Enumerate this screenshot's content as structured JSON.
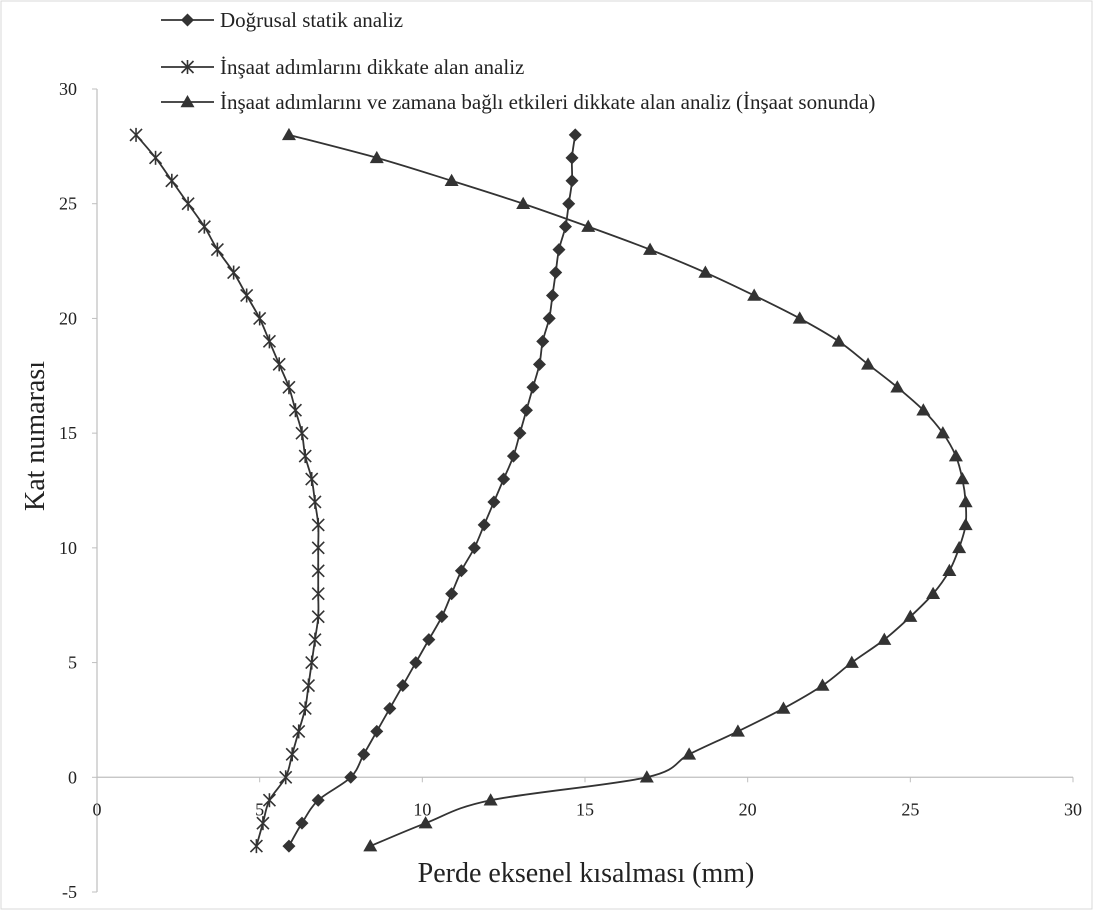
{
  "chart_data": {
    "type": "line",
    "xlabel": "Perde eksenel kısalması (mm)",
    "ylabel": "Kat numarası",
    "xlim": [
      0,
      30
    ],
    "ylim": [
      -5,
      30
    ],
    "x_ticks": [
      0,
      5,
      10,
      15,
      20,
      25,
      30
    ],
    "y_ticks": [
      -5,
      0,
      5,
      10,
      15,
      20,
      25,
      30
    ],
    "grid": false,
    "legend_position": "top",
    "line_color": "#333333",
    "series": [
      {
        "name": "Doğrusal statik analiz",
        "marker": "diamond",
        "points": [
          [
            5.9,
            -3
          ],
          [
            6.3,
            -2
          ],
          [
            6.8,
            -1
          ],
          [
            7.8,
            0
          ],
          [
            8.2,
            1
          ],
          [
            8.6,
            2
          ],
          [
            9.0,
            3
          ],
          [
            9.4,
            4
          ],
          [
            9.8,
            5
          ],
          [
            10.2,
            6
          ],
          [
            10.6,
            7
          ],
          [
            10.9,
            8
          ],
          [
            11.2,
            9
          ],
          [
            11.6,
            10
          ],
          [
            11.9,
            11
          ],
          [
            12.2,
            12
          ],
          [
            12.5,
            13
          ],
          [
            12.8,
            14
          ],
          [
            13.0,
            15
          ],
          [
            13.2,
            16
          ],
          [
            13.4,
            17
          ],
          [
            13.6,
            18
          ],
          [
            13.7,
            19
          ],
          [
            13.9,
            20
          ],
          [
            14.0,
            21
          ],
          [
            14.1,
            22
          ],
          [
            14.2,
            23
          ],
          [
            14.4,
            24
          ],
          [
            14.5,
            25
          ],
          [
            14.6,
            26
          ],
          [
            14.6,
            27
          ],
          [
            14.7,
            28
          ]
        ]
      },
      {
        "name": "İnşaat adımlarını dikkate alan analiz",
        "marker": "star",
        "points": [
          [
            4.9,
            -3
          ],
          [
            5.1,
            -2
          ],
          [
            5.3,
            -1
          ],
          [
            5.8,
            0
          ],
          [
            6.0,
            1
          ],
          [
            6.2,
            2
          ],
          [
            6.4,
            3
          ],
          [
            6.5,
            4
          ],
          [
            6.6,
            5
          ],
          [
            6.7,
            6
          ],
          [
            6.8,
            7
          ],
          [
            6.8,
            8
          ],
          [
            6.8,
            9
          ],
          [
            6.8,
            10
          ],
          [
            6.8,
            11
          ],
          [
            6.7,
            12
          ],
          [
            6.6,
            13
          ],
          [
            6.4,
            14
          ],
          [
            6.3,
            15
          ],
          [
            6.1,
            16
          ],
          [
            5.9,
            17
          ],
          [
            5.6,
            18
          ],
          [
            5.3,
            19
          ],
          [
            5.0,
            20
          ],
          [
            4.6,
            21
          ],
          [
            4.2,
            22
          ],
          [
            3.7,
            23
          ],
          [
            3.3,
            24
          ],
          [
            2.8,
            25
          ],
          [
            2.3,
            26
          ],
          [
            1.8,
            27
          ],
          [
            1.2,
            28
          ]
        ]
      },
      {
        "name": "İnşaat adımlarını ve zamana bağlı etkileri dikkate alan analiz (İnşaat sonunda)",
        "marker": "triangle",
        "points": [
          [
            8.4,
            -3
          ],
          [
            10.1,
            -2
          ],
          [
            12.1,
            -1
          ],
          [
            16.9,
            0
          ],
          [
            18.2,
            1
          ],
          [
            19.7,
            2
          ],
          [
            21.1,
            3
          ],
          [
            22.3,
            4
          ],
          [
            23.2,
            5
          ],
          [
            24.2,
            6
          ],
          [
            25.0,
            7
          ],
          [
            25.7,
            8
          ],
          [
            26.2,
            9
          ],
          [
            26.5,
            10
          ],
          [
            26.7,
            11
          ],
          [
            26.7,
            12
          ],
          [
            26.6,
            13
          ],
          [
            26.4,
            14
          ],
          [
            26.0,
            15
          ],
          [
            25.4,
            16
          ],
          [
            24.6,
            17
          ],
          [
            23.7,
            18
          ],
          [
            22.8,
            19
          ],
          [
            21.6,
            20
          ],
          [
            20.2,
            21
          ],
          [
            18.7,
            22
          ],
          [
            17.0,
            23
          ],
          [
            15.1,
            24
          ],
          [
            13.1,
            25
          ],
          [
            10.9,
            26
          ],
          [
            8.6,
            27
          ],
          [
            5.9,
            28
          ]
        ]
      }
    ]
  }
}
